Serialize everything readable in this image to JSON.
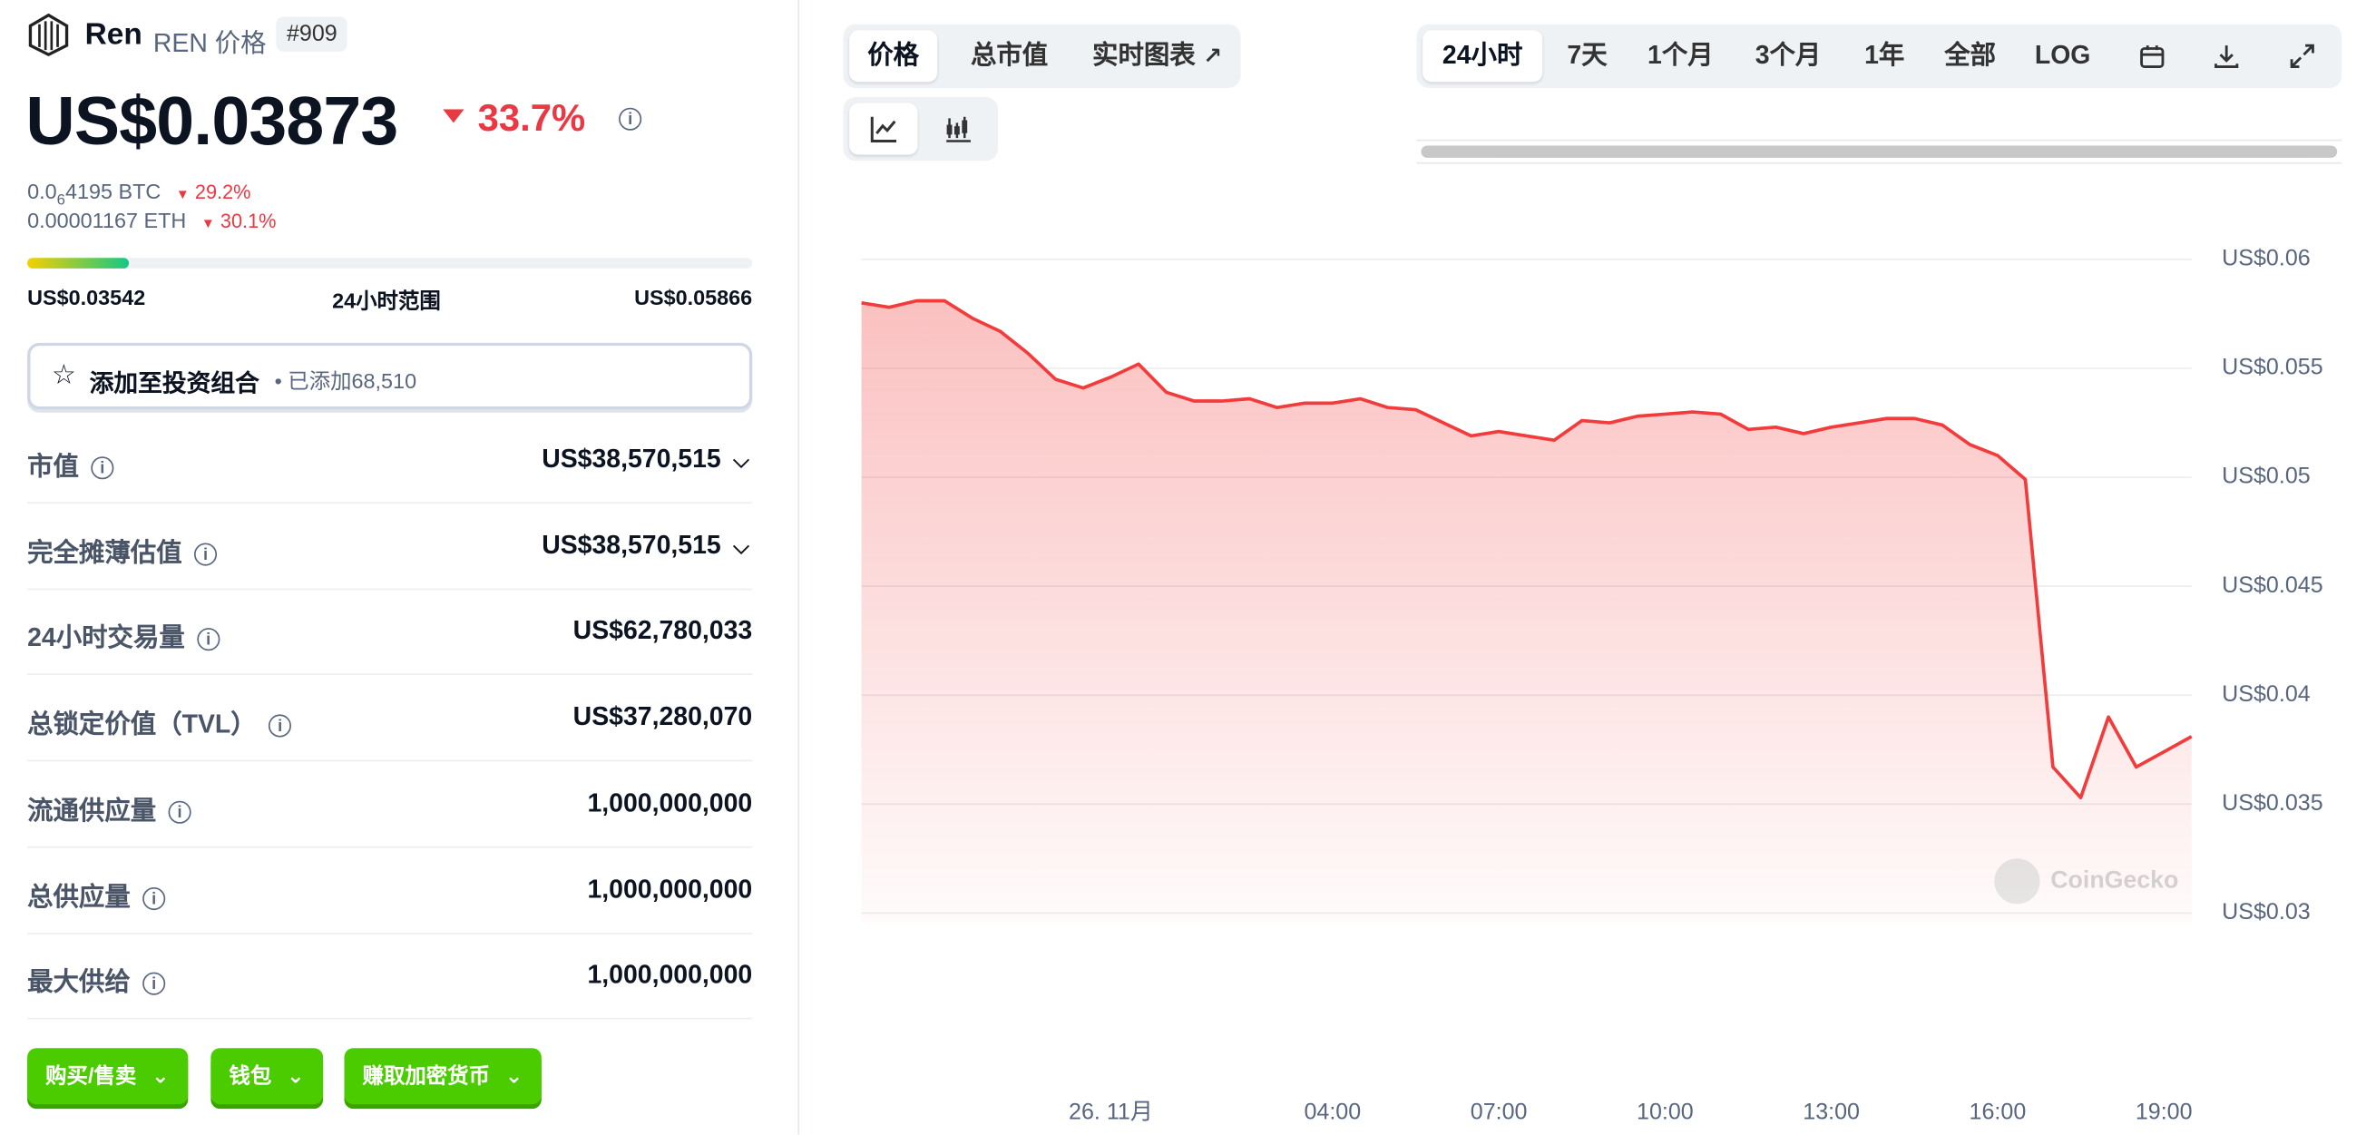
{
  "header": {
    "name": "Ren",
    "symbol_label": "REN 价格",
    "rank": "#909",
    "price": "US$0.03873",
    "change": "33.7%",
    "price_btc_lead": "0.0",
    "price_btc_zeros": "6",
    "price_btc_rest": "4195 BTC",
    "change_btc": "29.2%",
    "price_eth": "0.00001167 ETH",
    "change_eth": "30.1%",
    "range_low": "US$0.03542",
    "range_label": "24小时范围",
    "range_high": "US$0.05866",
    "portfolio_button": "添加至投资组合",
    "portfolio_added": "• 已添加68,510"
  },
  "stats": [
    {
      "label": "市值",
      "value": "US$38,570,515"
    },
    {
      "label": "完全摊薄估值",
      "value": "US$38,570,515"
    },
    {
      "label": "24小时交易量",
      "value": "US$62,780,033"
    },
    {
      "label": "总锁定价值（TVL）",
      "value": "US$37,280,070"
    },
    {
      "label": "流通供应量",
      "value": "1,000,000,000"
    },
    {
      "label": "总供应量",
      "value": "1,000,000,000"
    },
    {
      "label": "最大供给",
      "value": "1,000,000,000"
    }
  ],
  "actions": [
    "购买/售卖",
    "钱包",
    "赚取加密货币"
  ],
  "chart_tabs": [
    "价格",
    "总市值",
    "实时图表"
  ],
  "range_tabs": [
    "24小时",
    "7天",
    "1个月",
    "3个月",
    "1年",
    "全部",
    "LOG"
  ],
  "watermark": "CoinGecko",
  "chart_data": {
    "type": "line",
    "color": "#f23c3c",
    "categories": [
      null,
      null,
      null,
      null,
      null,
      null,
      null,
      null,
      null,
      "26. 11月",
      null,
      null,
      null,
      null,
      null,
      null,
      null,
      "04:00",
      null,
      null,
      null,
      null,
      null,
      "07:00",
      null,
      null,
      null,
      null,
      null,
      "10:00",
      null,
      null,
      null,
      null,
      null,
      "13:00",
      null,
      null,
      null,
      null,
      null,
      "16:00",
      null,
      null,
      null,
      null,
      null,
      "19:00",
      null
    ],
    "values": [
      0.058,
      0.0578,
      0.0581,
      0.0581,
      0.0573,
      0.0567,
      0.0557,
      0.0545,
      0.0541,
      0.0546,
      0.0552,
      0.0539,
      0.0535,
      0.0535,
      0.0536,
      0.0532,
      0.0534,
      0.0534,
      0.0536,
      0.0532,
      0.0531,
      0.0525,
      0.0519,
      0.0521,
      0.0519,
      0.0517,
      0.0526,
      0.0525,
      0.0528,
      0.0529,
      0.053,
      0.0529,
      0.0522,
      0.0523,
      0.052,
      0.0523,
      0.0525,
      0.0527,
      0.0527,
      0.0524,
      0.0515,
      0.051,
      0.0499,
      0.0367,
      0.0353,
      0.039,
      0.0367,
      0.0374,
      0.0381
    ],
    "ylim": [
      0.03,
      0.06
    ],
    "yticks": [
      {
        "value": 0.03,
        "label": "US$0.03"
      },
      {
        "value": 0.035,
        "label": "US$0.035"
      },
      {
        "value": 0.04,
        "label": "US$0.04"
      },
      {
        "value": 0.045,
        "label": "US$0.045"
      },
      {
        "value": 0.05,
        "label": "US$0.05"
      },
      {
        "value": 0.055,
        "label": "US$0.055"
      },
      {
        "value": 0.06,
        "label": "US$0.06"
      }
    ],
    "grid": true
  }
}
